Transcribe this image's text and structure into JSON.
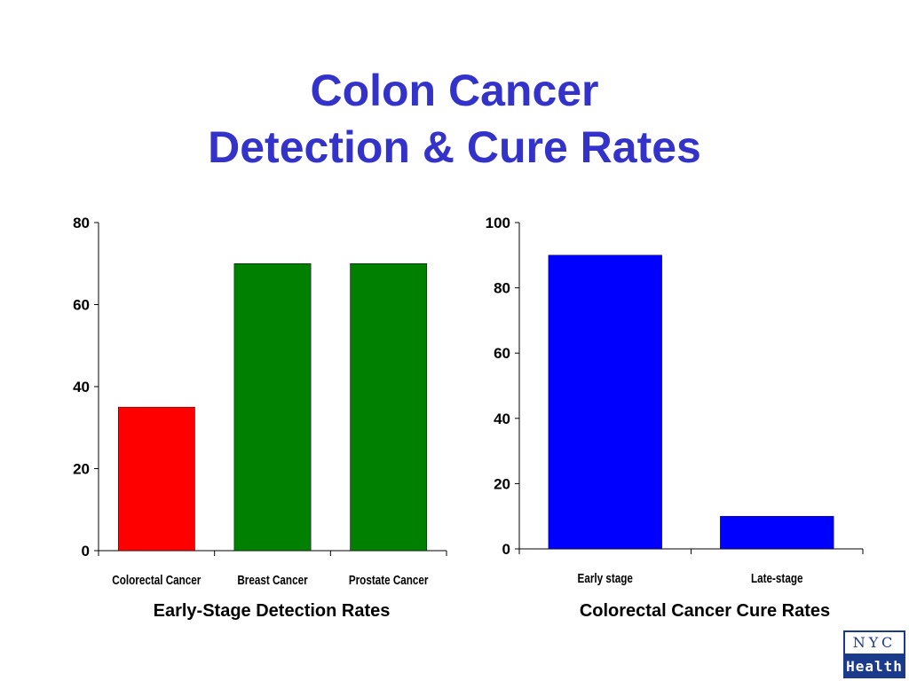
{
  "slide": {
    "title_line1": "Colon Cancer",
    "title_line2": "Detection & Cure Rates"
  },
  "logo": {
    "line1": "NYC",
    "line2": "Health"
  },
  "chart_data": [
    {
      "type": "bar",
      "title": "Early-Stage Detection Rates",
      "categories": [
        "Colorectal Cancer",
        "Breast Cancer",
        "Prostate Cancer"
      ],
      "values": [
        35,
        70,
        70
      ],
      "colors": [
        "#ff0000",
        "#008000",
        "#008000"
      ],
      "ylim": [
        0,
        80
      ],
      "yticks": [
        0,
        20,
        40,
        60,
        80
      ],
      "grid": false,
      "xlabel": "",
      "ylabel": ""
    },
    {
      "type": "bar",
      "title": "Colorectal Cancer Cure Rates",
      "categories": [
        "Early stage",
        "Late-stage"
      ],
      "values": [
        90,
        10
      ],
      "colors": [
        "#0000ff",
        "#0000ff"
      ],
      "ylim": [
        0,
        100
      ],
      "yticks": [
        0,
        20,
        40,
        60,
        80,
        100
      ],
      "grid": false,
      "xlabel": "",
      "ylabel": ""
    }
  ]
}
